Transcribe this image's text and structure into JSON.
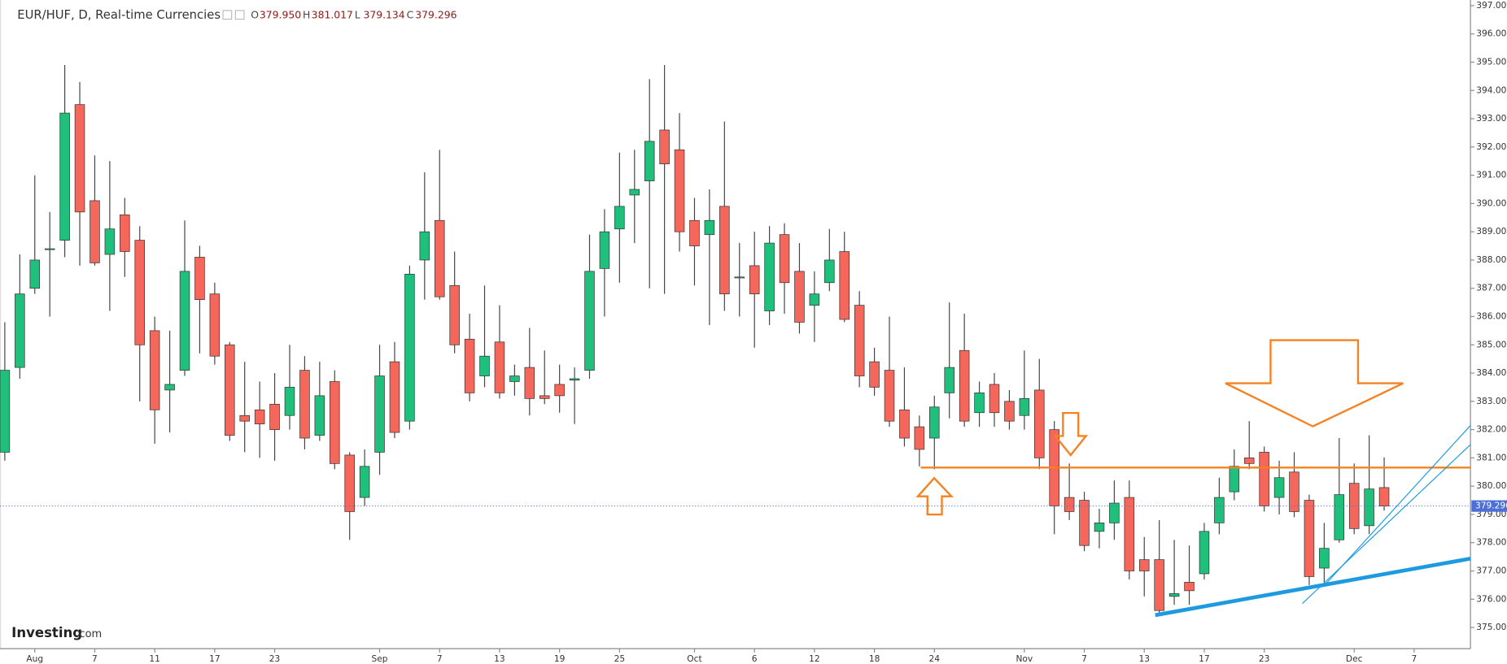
{
  "chart_data": {
    "type": "candlestick",
    "title": "EUR/HUF, D, Real-time Currencies",
    "header_items": [
      {
        "key": "O",
        "value": "379.950"
      },
      {
        "key": "H",
        "value": "381.017"
      },
      {
        "key": "L",
        "value": "379.134"
      },
      {
        "key": "C",
        "value": "379.296"
      }
    ],
    "logo": [
      "Investing",
      ".com"
    ],
    "categories": [
      null,
      null,
      "Aug",
      null,
      null,
      null,
      "7",
      null,
      null,
      null,
      "11",
      null,
      null,
      null,
      "17",
      null,
      null,
      null,
      "23",
      null,
      null,
      null,
      null,
      null,
      null,
      "Sep",
      null,
      null,
      null,
      "7",
      null,
      null,
      null,
      "13",
      null,
      null,
      null,
      "19",
      null,
      null,
      null,
      "25",
      null,
      null,
      null,
      null,
      "Oct",
      null,
      null,
      null,
      "6",
      null,
      null,
      null,
      "12",
      null,
      null,
      null,
      "18",
      null,
      null,
      null,
      "24",
      null,
      null,
      null,
      null,
      null,
      "Nov",
      null,
      null,
      null,
      "7",
      null,
      null,
      null,
      "13",
      null,
      null,
      null,
      "17",
      null,
      null,
      null,
      "23",
      null,
      null,
      null,
      null,
      null,
      "Dec",
      null,
      null,
      null,
      "7"
    ],
    "open": [
      381.2,
      384.2,
      387.0,
      388.4,
      388.7,
      393.5,
      390.1,
      388.2,
      389.6,
      388.7,
      385.5,
      383.4,
      384.1,
      388.1,
      386.8,
      385.0,
      382.5,
      382.7,
      382.9,
      382.5,
      384.1,
      381.8,
      383.7,
      381.1,
      379.6,
      381.2,
      384.4,
      382.3,
      388.0,
      389.4,
      387.1,
      385.2,
      383.9,
      385.1,
      383.7,
      384.2,
      383.2,
      383.6,
      383.75,
      384.1,
      387.7,
      389.1,
      390.3,
      390.8,
      392.6,
      391.9,
      389.4,
      388.9,
      389.9,
      387.4,
      387.8,
      386.2,
      388.9,
      387.6,
      386.4,
      387.2,
      388.3,
      386.4,
      384.4,
      384.1,
      382.7,
      382.1,
      381.7,
      383.3,
      384.8,
      382.6,
      383.6,
      383.0,
      382.5,
      383.4,
      382.0,
      379.6,
      379.5,
      378.4,
      378.7,
      379.6,
      377.4,
      377.4,
      376.1,
      376.6,
      376.9,
      378.7,
      379.8,
      381.0,
      381.2,
      379.6,
      380.5,
      379.5,
      377.1,
      378.1,
      380.1,
      378.6,
      379.95,
      null,
      null
    ],
    "high": [
      385.8,
      388.2,
      391.0,
      389.7,
      394.9,
      394.3,
      391.7,
      391.5,
      390.2,
      389.2,
      386.0,
      385.5,
      389.4,
      388.5,
      387.2,
      385.1,
      384.4,
      383.7,
      384.0,
      385.0,
      384.6,
      384.4,
      384.1,
      381.2,
      381.3,
      385.0,
      385.1,
      387.8,
      391.1,
      391.9,
      388.3,
      386.1,
      387.1,
      386.4,
      384.3,
      385.6,
      384.8,
      384.3,
      384.2,
      388.9,
      389.8,
      391.8,
      391.9,
      394.4,
      394.9,
      393.2,
      390.2,
      390.5,
      392.9,
      388.6,
      389.0,
      389.2,
      389.3,
      388.6,
      387.6,
      389.1,
      389.0,
      386.9,
      384.9,
      386.0,
      384.2,
      382.5,
      383.2,
      386.5,
      386.1,
      383.7,
      384.0,
      383.4,
      384.8,
      384.5,
      382.3,
      380.8,
      379.8,
      379.2,
      380.2,
      380.2,
      378.2,
      378.8,
      378.1,
      377.9,
      378.7,
      380.3,
      381.3,
      382.3,
      381.4,
      380.9,
      381.2,
      379.7,
      378.7,
      381.7,
      380.8,
      381.8,
      381.017,
      null,
      null
    ],
    "low": [
      380.9,
      383.8,
      386.8,
      386.0,
      388.1,
      387.8,
      387.8,
      386.2,
      387.4,
      383.0,
      381.5,
      381.9,
      383.9,
      384.7,
      384.3,
      381.6,
      381.2,
      381.0,
      380.9,
      382.0,
      381.3,
      381.6,
      380.6,
      378.1,
      379.3,
      380.4,
      381.7,
      382.0,
      386.6,
      386.6,
      384.7,
      383.0,
      383.5,
      383.1,
      383.2,
      382.5,
      382.9,
      382.6,
      382.2,
      383.8,
      386.0,
      387.2,
      388.6,
      387.0,
      386.8,
      388.3,
      387.1,
      385.7,
      386.2,
      386.0,
      384.9,
      385.7,
      386.1,
      385.4,
      385.1,
      386.9,
      385.8,
      383.5,
      383.2,
      382.1,
      381.4,
      380.7,
      380.6,
      382.4,
      382.1,
      382.1,
      382.1,
      382.0,
      382.0,
      380.6,
      378.3,
      378.8,
      377.7,
      377.8,
      378.1,
      376.7,
      376.1,
      375.5,
      375.8,
      375.8,
      376.7,
      378.3,
      379.5,
      380.6,
      379.1,
      379.0,
      378.9,
      376.5,
      376.6,
      378.0,
      378.3,
      378.3,
      379.134,
      null,
      null
    ],
    "close": [
      384.1,
      386.8,
      388.0,
      388.4,
      393.2,
      389.7,
      387.9,
      389.1,
      388.3,
      385.0,
      382.7,
      383.6,
      387.6,
      386.6,
      384.6,
      381.8,
      382.3,
      382.2,
      382.0,
      383.5,
      381.7,
      383.2,
      380.8,
      379.1,
      380.7,
      383.9,
      381.9,
      387.5,
      389.0,
      386.7,
      385.0,
      383.3,
      384.6,
      383.3,
      383.9,
      383.1,
      383.1,
      383.2,
      383.8,
      387.6,
      389.0,
      389.9,
      390.5,
      392.2,
      391.4,
      389.0,
      388.5,
      389.4,
      386.8,
      387.4,
      386.8,
      388.6,
      387.2,
      385.8,
      386.8,
      388.0,
      385.9,
      383.9,
      383.5,
      382.3,
      381.7,
      381.3,
      382.8,
      384.2,
      382.3,
      383.3,
      382.6,
      382.3,
      383.1,
      381.0,
      379.3,
      379.1,
      377.9,
      378.7,
      379.4,
      377.0,
      377.0,
      375.6,
      376.2,
      376.3,
      378.4,
      379.6,
      380.7,
      380.8,
      379.3,
      380.3,
      379.1,
      376.8,
      377.8,
      379.7,
      378.5,
      379.9,
      379.296,
      null,
      null
    ],
    "up_color": "#1fc07c",
    "down_color": "#f5665b",
    "ylim": [
      374.25,
      397.2
    ],
    "yticks": [
      {
        "value": 375,
        "label": "375.000"
      },
      {
        "value": 376,
        "label": "376.000"
      },
      {
        "value": 377,
        "label": "377.000"
      },
      {
        "value": 378,
        "label": "378.000"
      },
      {
        "value": 379,
        "label": "379.000"
      },
      {
        "value": 380,
        "label": "380.000"
      },
      {
        "value": 381,
        "label": "381.000"
      },
      {
        "value": 382,
        "label": "382.000"
      },
      {
        "value": 383,
        "label": "383.000"
      },
      {
        "value": 384,
        "label": "384.000"
      },
      {
        "value": 385,
        "label": "385.000"
      },
      {
        "value": 386,
        "label": "386.000"
      },
      {
        "value": 387,
        "label": "387.000"
      },
      {
        "value": 388,
        "label": "388.000"
      },
      {
        "value": 389,
        "label": "389.000"
      },
      {
        "value": 390,
        "label": "390.000"
      },
      {
        "value": 391,
        "label": "391.000"
      },
      {
        "value": 392,
        "label": "392.000"
      },
      {
        "value": 393,
        "label": "393.000"
      },
      {
        "value": 394,
        "label": "394.000"
      },
      {
        "value": 395,
        "label": "395.000"
      },
      {
        "value": 396,
        "label": "396.000"
      },
      {
        "value": 397,
        "label": "397.000"
      }
    ],
    "grid": false
  }
}
